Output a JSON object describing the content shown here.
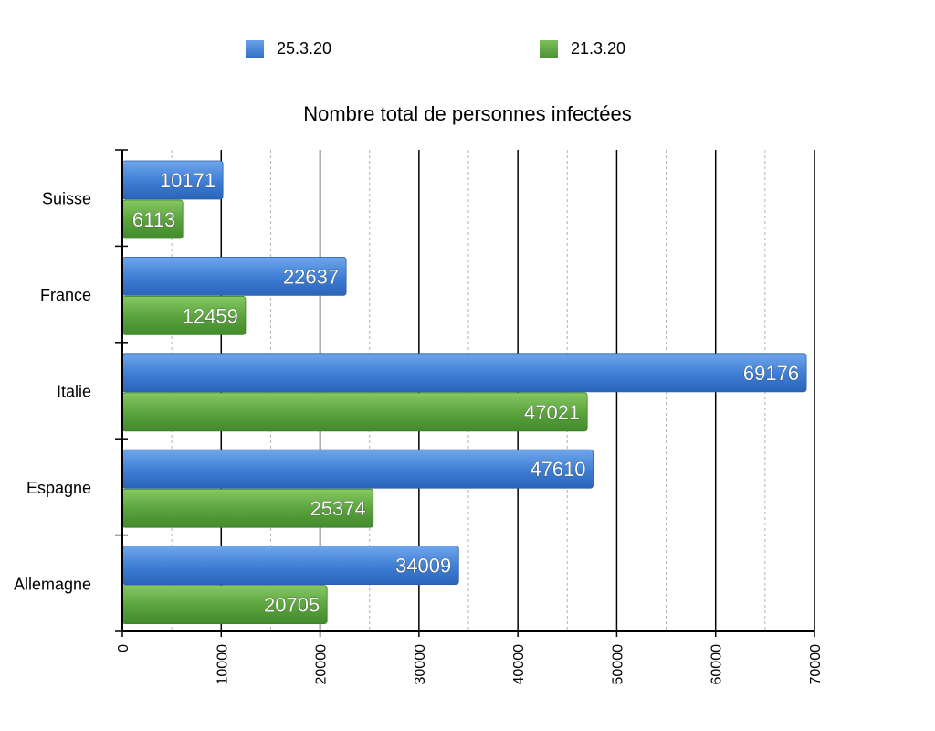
{
  "colors": {
    "series_blue": "#3f7fd6",
    "series_green": "#5aa23e",
    "axis": "#000000",
    "grid_minor": "#b3b3b3"
  },
  "chart_data": {
    "type": "bar",
    "orientation": "horizontal",
    "title": "Nombre total de personnes infectées",
    "categories": [
      "Suisse",
      "France",
      "Italie",
      "Espagne",
      "Allemagne"
    ],
    "series": [
      {
        "name": "25.3.20",
        "values": [
          10171,
          22637,
          69176,
          47610,
          34009
        ]
      },
      {
        "name": "21.3.20",
        "values": [
          6113,
          12459,
          47021,
          25374,
          20705
        ]
      }
    ],
    "xlim": [
      0,
      70000
    ],
    "x_ticks": [
      0,
      10000,
      20000,
      30000,
      40000,
      50000,
      60000,
      70000
    ],
    "grid": {
      "major": true,
      "minor_dashed": true
    },
    "legend_position": "top",
    "xlabel": "",
    "ylabel": ""
  }
}
